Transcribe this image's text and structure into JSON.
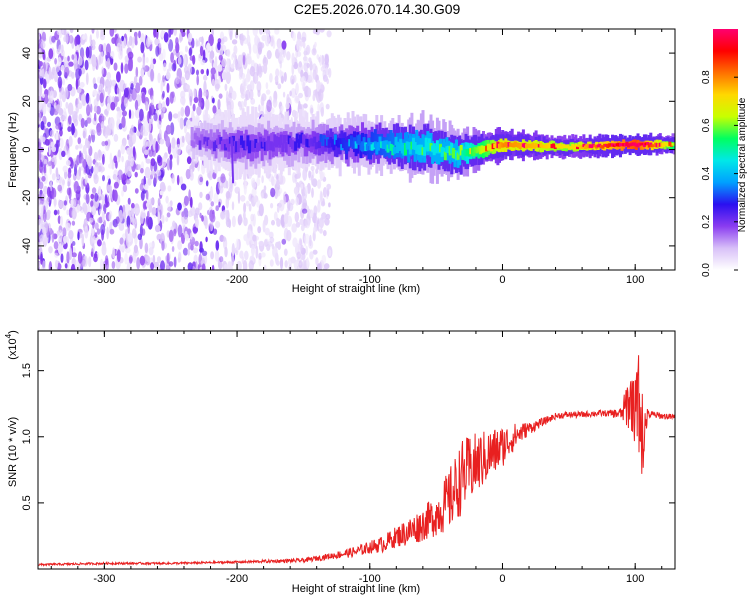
{
  "title": "C2E5.2026.070.14.30.G09",
  "chart_data": [
    {
      "type": "heatmap",
      "title": "C2E5.2026.070.14.30.G09",
      "xlabel": "Height of straight line (km)",
      "ylabel": "Frequency (Hz)",
      "xlim": [
        -350,
        130
      ],
      "ylim": [
        -50,
        50
      ],
      "x_ticks": [
        -300,
        -200,
        -100,
        0,
        100
      ],
      "x_tick_labels": [
        "-300",
        "-200",
        "-100",
        "0",
        "100"
      ],
      "y_ticks": [
        -40,
        -20,
        0,
        20,
        40
      ],
      "y_tick_labels": [
        "-40",
        "-20",
        "0",
        "20",
        "40"
      ],
      "colorbar": {
        "label": "Normalized spectral amplitude",
        "range": [
          0,
          1
        ],
        "ticks": [
          0.0,
          0.2,
          0.4,
          0.6,
          0.8
        ],
        "tick_labels": [
          "0.0",
          "0.2",
          "0.4",
          "0.6",
          "0.8"
        ],
        "colormap": [
          "#ffffff",
          "#d8c0f8",
          "#8a3cf0",
          "#2a10f0",
          "#00a0ff",
          "#00e8e8",
          "#00ff60",
          "#c8ff00",
          "#ffd800",
          "#ff7000",
          "#ff0000",
          "#ff0070"
        ]
      },
      "signal_band": {
        "x": [
          -235,
          -200,
          -150,
          -100,
          -60,
          -35,
          0,
          50,
          100,
          130
        ],
        "center_hz": [
          4,
          2,
          3,
          2,
          1,
          -2,
          2,
          1,
          2,
          2
        ],
        "halfwidth_hz": [
          4,
          6,
          5,
          5,
          6,
          5,
          3,
          2,
          2,
          2
        ],
        "peak_amplitude": [
          0.15,
          0.2,
          0.2,
          0.35,
          0.45,
          0.45,
          0.8,
          0.7,
          1.0,
          0.6
        ]
      },
      "noise_region": {
        "x_range": [
          -350,
          -130
        ],
        "frequency_range_hz": [
          -50,
          50
        ]
      },
      "grid": false
    },
    {
      "type": "line",
      "xlabel": "Height of straight line (km)",
      "ylabel": "SNR (10 * v/v)",
      "y_multiplier_label": "(x10",
      "y_multiplier_exponent": "4",
      "xlim": [
        -350,
        130
      ],
      "ylim": [
        0,
        1.8
      ],
      "x_ticks": [
        -300,
        -200,
        -100,
        0,
        100
      ],
      "x_tick_labels": [
        "-300",
        "-200",
        "-100",
        "0",
        "100"
      ],
      "y_ticks": [
        0.5,
        1.0,
        1.5
      ],
      "y_tick_labels": [
        "0.5",
        "1.0",
        "1.5"
      ],
      "line_color": "#e82020",
      "series": [
        {
          "x": [
            -350,
            -300,
            -250,
            -200,
            -150,
            -130,
            -110,
            -100,
            -90,
            -80,
            -70,
            -60,
            -50,
            -40,
            -30,
            -20,
            -10,
            0,
            10,
            20,
            30,
            40,
            50,
            60,
            70,
            80,
            90,
            95,
            100,
            103,
            105,
            107,
            110,
            120,
            130
          ],
          "y": [
            0.03,
            0.04,
            0.04,
            0.05,
            0.06,
            0.09,
            0.12,
            0.15,
            0.17,
            0.22,
            0.25,
            0.3,
            0.36,
            0.45,
            0.62,
            0.72,
            0.8,
            0.88,
            0.98,
            1.05,
            1.1,
            1.15,
            1.16,
            1.16,
            1.17,
            1.17,
            1.16,
            1.2,
            1.2,
            1.1,
            0.75,
            1.05,
            1.16,
            1.15,
            1.14
          ],
          "noise_amplitude": [
            0.01,
            0.01,
            0.01,
            0.01,
            0.02,
            0.03,
            0.05,
            0.06,
            0.08,
            0.1,
            0.14,
            0.16,
            0.2,
            0.3,
            0.35,
            0.3,
            0.25,
            0.2,
            0.12,
            0.06,
            0.04,
            0.03,
            0.03,
            0.03,
            0.03,
            0.03,
            0.06,
            0.3,
            0.3,
            0.35,
            0.35,
            0.2,
            0.04,
            0.03,
            0.03
          ]
        }
      ],
      "grid": false
    }
  ]
}
